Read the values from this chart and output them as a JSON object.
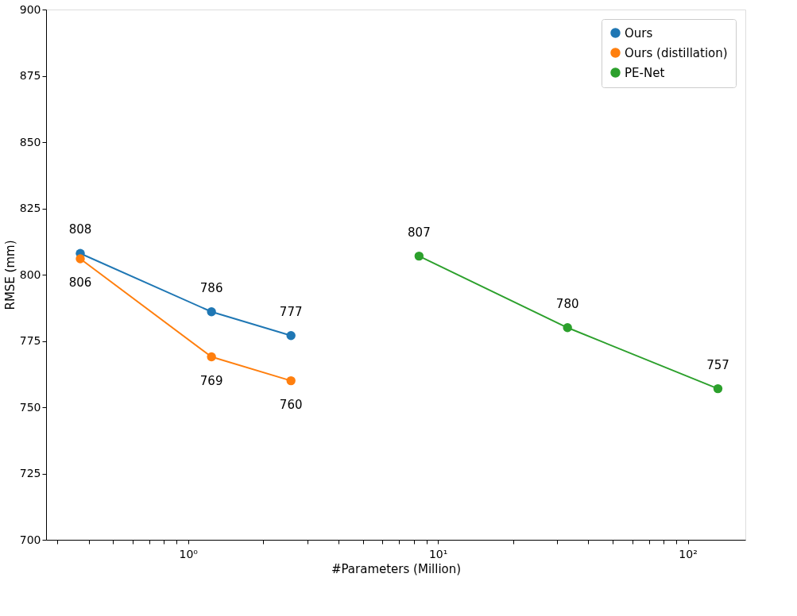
{
  "chart_data": {
    "type": "line",
    "xlabel": "#Parameters (Million)",
    "ylabel": "RMSE (mm)",
    "log": "x",
    "marker": "circle",
    "line_style": "solid",
    "legend": "top right",
    "grid": false,
    "data_labels": true,
    "xlim": [
      0.27,
      170
    ],
    "ylim": [
      700,
      900
    ],
    "xticks": [
      {
        "value": 0.3,
        "label": null
      },
      {
        "value": 0.4,
        "label": null
      },
      {
        "value": 0.5,
        "label": null
      },
      {
        "value": 0.6,
        "label": null
      },
      {
        "value": 0.7,
        "label": null
      },
      {
        "value": 0.8,
        "label": null
      },
      {
        "value": 0.9,
        "label": null
      },
      {
        "value": 1,
        "label": "10⁰"
      },
      {
        "value": 2,
        "label": null
      },
      {
        "value": 3,
        "label": null
      },
      {
        "value": 4,
        "label": null
      },
      {
        "value": 5,
        "label": null
      },
      {
        "value": 6,
        "label": null
      },
      {
        "value": 7,
        "label": null
      },
      {
        "value": 8,
        "label": null
      },
      {
        "value": 9,
        "label": null
      },
      {
        "value": 10,
        "label": "10¹"
      },
      {
        "value": 20,
        "label": null
      },
      {
        "value": 30,
        "label": null
      },
      {
        "value": 40,
        "label": null
      },
      {
        "value": 50,
        "label": null
      },
      {
        "value": 60,
        "label": null
      },
      {
        "value": 70,
        "label": null
      },
      {
        "value": 80,
        "label": null
      },
      {
        "value": 90,
        "label": null
      },
      {
        "value": 100,
        "label": "10²"
      }
    ],
    "yticks": [
      700,
      725,
      750,
      775,
      800,
      825,
      850,
      875,
      900
    ],
    "series": [
      {
        "name": "Ours",
        "color": "#1f77b4",
        "x": [
          0.37,
          1.24,
          2.58
        ],
        "values": [
          808,
          786,
          777
        ]
      },
      {
        "name": "Ours (distillation)",
        "color": "#ff7f0e",
        "x": [
          0.37,
          1.24,
          2.58
        ],
        "values": [
          806,
          769,
          760
        ]
      },
      {
        "name": "PE-Net",
        "color": "#2ca02c",
        "x": [
          8.4,
          33,
          132
        ],
        "values": [
          807,
          780,
          757
        ]
      }
    ]
  }
}
